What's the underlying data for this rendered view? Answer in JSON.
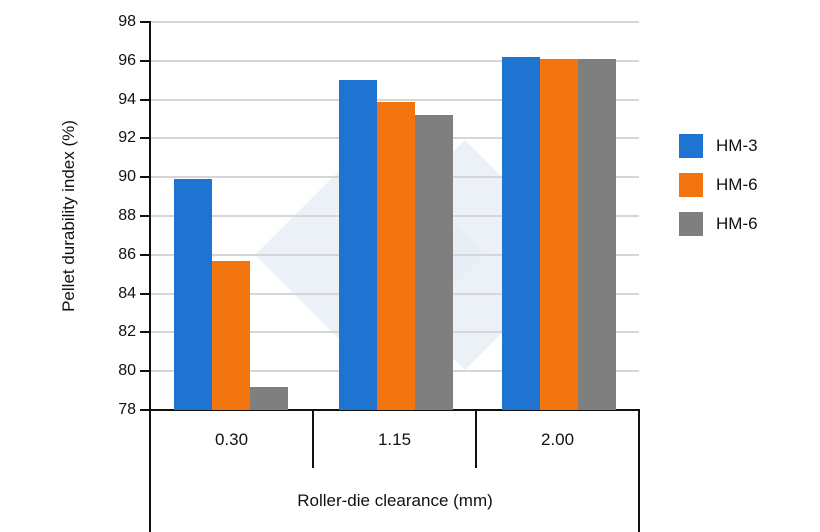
{
  "chart_data": {
    "type": "bar",
    "title": "",
    "xlabel": "Roller-die clearance (mm)",
    "ylabel": "Pellet durability index (%)",
    "ylim": [
      78,
      98
    ],
    "yticks": [
      78,
      80,
      82,
      84,
      86,
      88,
      90,
      92,
      94,
      96,
      98
    ],
    "grid": true,
    "legend_position": "right",
    "categories": [
      "0.30",
      "1.15",
      "2.00"
    ],
    "series": [
      {
        "name": "HM-3",
        "color": "#1f74d1",
        "values": [
          89.9,
          95.0,
          96.2
        ]
      },
      {
        "name": "HM-6",
        "color": "#f2750f",
        "values": [
          85.7,
          93.9,
          96.1
        ]
      },
      {
        "name": "HM-6",
        "color": "#7f7f7f",
        "values": [
          79.2,
          93.2,
          96.1
        ]
      }
    ]
  },
  "axis": {
    "y_label": "Pellet durability index (%)",
    "x_label": "Roller-die clearance (mm)",
    "y_ticks": [
      "98",
      "96",
      "94",
      "92",
      "90",
      "88",
      "86",
      "84",
      "82",
      "80",
      "78"
    ],
    "categories": [
      "0.30",
      "1.15",
      "2.00"
    ]
  },
  "legend": [
    {
      "label": "HM-3",
      "color": "#1f74d1"
    },
    {
      "label": "HM-6",
      "color": "#f2750f"
    },
    {
      "label": "HM-6",
      "color": "#7f7f7f"
    }
  ],
  "watermark": {
    "color": "#dfe7f4",
    "icon": "diamond-logo-icon"
  }
}
